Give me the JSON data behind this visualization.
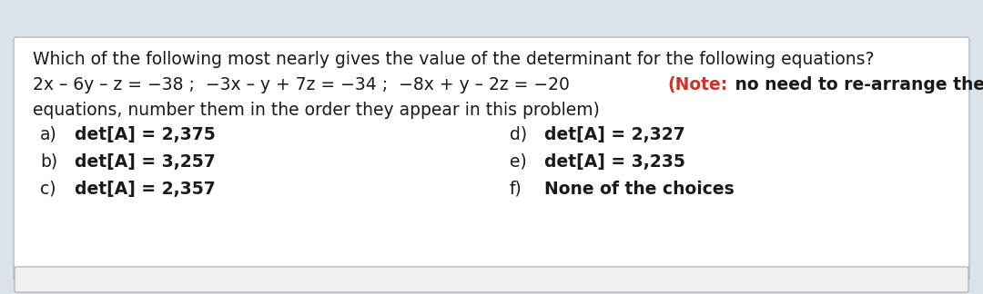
{
  "bg_color": "#dde3ea",
  "box_color": "#ffffff",
  "box_border_color": "#b0b8c4",
  "title_line1": "Which of the following most nearly gives the value of the determinant for the following equations?",
  "eq_part": "2x – 6y – z = −38 ;  −3x – y + 7z = −34 ;  −8x + y – 2z = −20 ",
  "note_bold": "(Note:",
  "note_rest": " no need to re-arrange the",
  "title_line3": "equations, number them in the order they appear in this problem)",
  "choices_left": [
    {
      "label": "a)",
      "text": "det[A] = 2,375"
    },
    {
      "label": "b)",
      "text": "det[A] = 3,257"
    },
    {
      "label": "c)",
      "text": "det[A] = 2,357"
    }
  ],
  "choices_right": [
    {
      "label": "d)",
      "text": "det[A] = 2,327"
    },
    {
      "label": "e)",
      "text": "det[A] = 3,235"
    },
    {
      "label": "f)",
      "text": "None of the choices"
    }
  ],
  "fs_title": 13.5,
  "fs_choices": 13.5,
  "text_color": "#1a1a1a",
  "note_color": "#c0392b"
}
